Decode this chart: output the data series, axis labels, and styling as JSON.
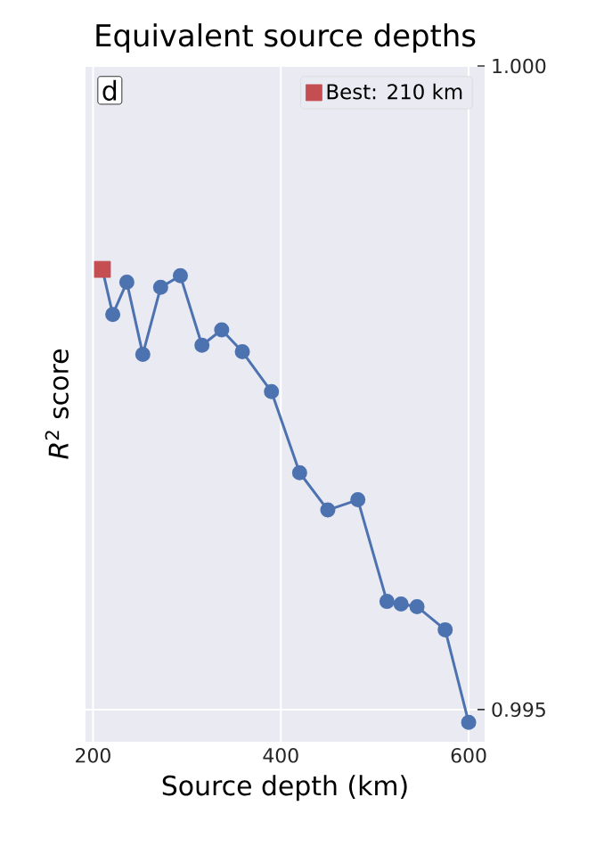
{
  "chart_data": {
    "type": "line",
    "title": "Equivalent source depths",
    "xlabel": "Source depth (km)",
    "ylabel": "*R*$^{2}$ score",
    "annotations": [
      "d"
    ],
    "series": [
      {
        "type": "line",
        "marker": "circle",
        "color": "#4c72b0",
        "x": [
          210,
          221,
          236,
          253,
          272,
          293,
          316,
          337,
          359,
          390,
          420,
          450,
          482,
          513,
          528,
          545,
          575,
          600
        ],
        "values": [
          0.99842,
          0.99807,
          0.99832,
          0.99776,
          0.99828,
          0.99837,
          0.99783,
          0.99795,
          0.99778,
          0.99747,
          0.99684,
          0.99655,
          0.99663,
          0.99584,
          0.99582,
          0.9958,
          0.99562,
          0.9949
        ]
      },
      {
        "type": "scatter",
        "marker": "square",
        "name": "Best: 210 km",
        "color": "#c44e52",
        "x": [
          210
        ],
        "values": [
          0.99842
        ]
      }
    ],
    "xlim": [
      192,
      617
    ],
    "ylim": [
      0.99475,
      1.0
    ],
    "xticks": [
      200,
      400,
      600
    ],
    "yticks": [
      {
        "value": 0.995,
        "label": "0.995"
      },
      {
        "value": 1.0,
        "label": "1.000"
      }
    ],
    "grid": true,
    "legend": "top right"
  }
}
